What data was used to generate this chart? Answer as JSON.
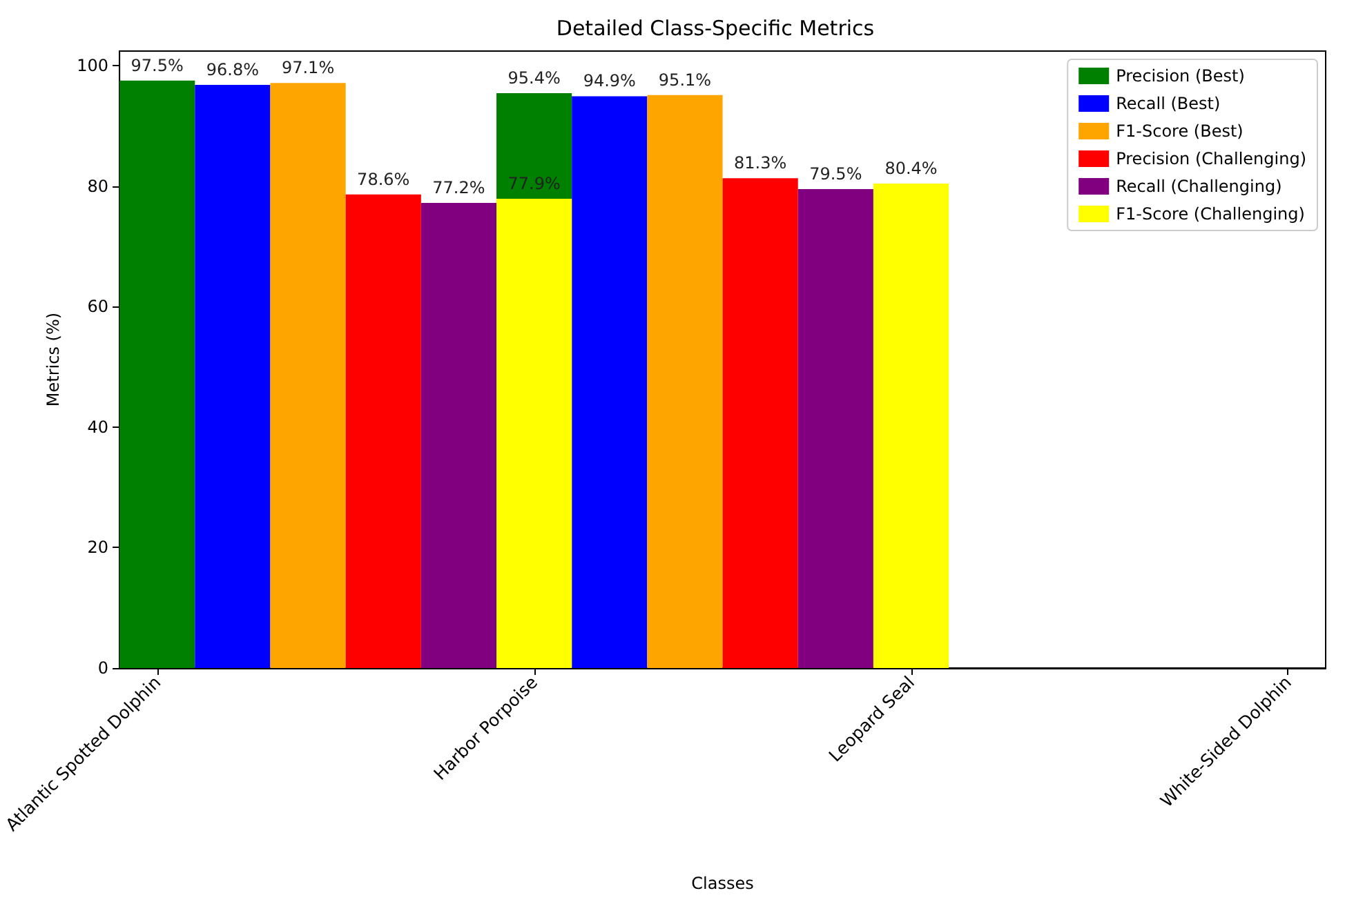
{
  "chart_data": {
    "type": "bar",
    "title": "Detailed Class-Specific Metrics",
    "xlabel": "Classes",
    "ylabel": "Metrics (%)",
    "categories": [
      "Atlantic Spotted Dolphin",
      null,
      null,
      null,
      null,
      "Harbor Porpoise",
      null,
      null,
      null,
      null,
      "Leopard Seal",
      null,
      null,
      null,
      null,
      "White-Sided Dolphin"
    ],
    "ylim": [
      0,
      102.4
    ],
    "yticks": [
      0,
      20,
      40,
      60,
      80,
      100
    ],
    "grid": false,
    "legend": "top right",
    "series": [
      {
        "name": "Precision (Best)",
        "color": "#008000",
        "values": [
          97.5,
          null,
          null,
          null,
          null,
          95.4,
          null,
          null,
          null,
          null,
          null,
          null,
          null,
          null,
          null,
          null
        ],
        "value_labels": [
          "97.5%",
          null,
          null,
          null,
          null,
          "95.4%",
          null,
          null,
          null,
          null,
          null,
          null,
          null,
          null,
          null,
          null
        ]
      },
      {
        "name": "Recall (Best)",
        "color": "#0000ff",
        "values": [
          null,
          96.8,
          null,
          null,
          null,
          null,
          94.9,
          null,
          null,
          null,
          null,
          null,
          null,
          null,
          null,
          null
        ],
        "value_labels": [
          null,
          "96.8%",
          null,
          null,
          null,
          null,
          "94.9%",
          null,
          null,
          null,
          null,
          null,
          null,
          null,
          null,
          null
        ]
      },
      {
        "name": "F1-Score (Best)",
        "color": "#ffa500",
        "values": [
          null,
          null,
          97.1,
          null,
          null,
          null,
          null,
          95.1,
          null,
          null,
          null,
          null,
          null,
          null,
          null,
          null
        ],
        "value_labels": [
          null,
          null,
          "97.1%",
          null,
          null,
          null,
          null,
          "95.1%",
          null,
          null,
          null,
          null,
          null,
          null,
          null,
          null
        ]
      },
      {
        "name": "Precision (Challenging)",
        "color": "#ff0000",
        "values": [
          null,
          null,
          null,
          78.6,
          null,
          null,
          null,
          null,
          81.3,
          null,
          null,
          null,
          null,
          null,
          null,
          null
        ],
        "value_labels": [
          null,
          null,
          null,
          "78.6%",
          null,
          null,
          null,
          null,
          "81.3%",
          null,
          null,
          null,
          null,
          null,
          null,
          null
        ]
      },
      {
        "name": "Recall (Challenging)",
        "color": "#800080",
        "values": [
          null,
          null,
          null,
          null,
          77.2,
          null,
          null,
          null,
          null,
          79.5,
          null,
          null,
          null,
          null,
          null,
          null
        ],
        "value_labels": [
          null,
          null,
          null,
          null,
          "77.2%",
          null,
          null,
          null,
          null,
          "79.5%",
          null,
          null,
          null,
          null,
          null,
          null
        ]
      },
      {
        "name": "F1-Score (Challenging)",
        "color": "#ffff00",
        "values": [
          null,
          null,
          null,
          null,
          null,
          77.9,
          null,
          null,
          null,
          null,
          80.4,
          null,
          null,
          null,
          null,
          null
        ],
        "value_labels": [
          null,
          null,
          null,
          null,
          null,
          "77.9%",
          null,
          null,
          null,
          null,
          "80.4%",
          null,
          null,
          null,
          null,
          null
        ]
      }
    ]
  }
}
